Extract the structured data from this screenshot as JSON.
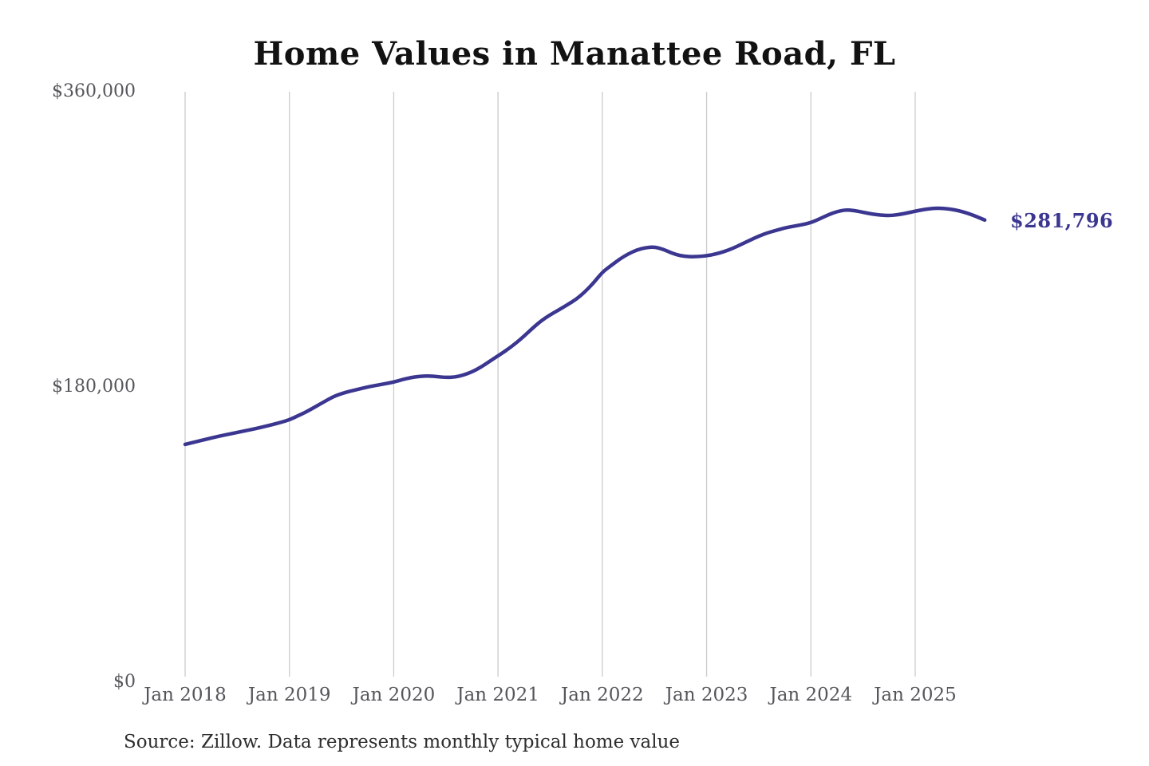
{
  "title": "Home Values in Manattee Road, FL",
  "annotation": {
    "label": "$281,796"
  },
  "source_note": "Source: Zillow. Data represents monthly typical home value",
  "colors": {
    "line": "#3b3690",
    "grid": "#cbcbcb",
    "axis_text": "#55565b",
    "title_text": "#121212",
    "source_text": "#2e2e2e",
    "background": "#ffffff"
  },
  "y_axis": {
    "ticks": [
      {
        "label": "$360,000",
        "value": 360000
      },
      {
        "label": "$180,000",
        "value": 180000
      },
      {
        "label": "$0",
        "value": 0
      }
    ]
  },
  "x_axis": {
    "ticks": [
      "Jan 2018",
      "Jan 2019",
      "Jan 2020",
      "Jan 2021",
      "Jan 2022",
      "Jan 2023",
      "Jan 2024",
      "Jan 2025"
    ]
  },
  "chart_data": {
    "type": "line",
    "title": "Home Values in Manattee Road, FL",
    "xlabel": "",
    "ylabel": "",
    "unit": "USD",
    "frequency": "monthly",
    "start_month": "Jan 2018",
    "end_month": "Sep 2025",
    "ylim": [
      0,
      360000
    ],
    "y_tick_values": [
      0,
      180000,
      360000
    ],
    "x_tick_labels": [
      "Jan 2018",
      "Jan 2019",
      "Jan 2020",
      "Jan 2021",
      "Jan 2022",
      "Jan 2023",
      "Jan 2024",
      "Jan 2025"
    ],
    "grid": "vertical-only",
    "legend": "none",
    "end_value": 281796,
    "end_label": "$281,796",
    "series": [
      {
        "name": "Typical home value",
        "values": [
          145000,
          146300,
          147600,
          148900,
          150100,
          151200,
          152300,
          153400,
          154500,
          155700,
          157000,
          158400,
          160000,
          162500,
          165000,
          168000,
          171000,
          174000,
          176000,
          177500,
          178700,
          180000,
          181000,
          182000,
          183000,
          184500,
          185800,
          186500,
          186800,
          186300,
          185800,
          186000,
          187200,
          189200,
          192000,
          195500,
          199000,
          202500,
          206500,
          211000,
          216000,
          220500,
          224000,
          227000,
          230200,
          233500,
          238000,
          243500,
          250000,
          254000,
          258000,
          261200,
          263600,
          265000,
          265400,
          264000,
          261600,
          260000,
          259400,
          259500,
          260000,
          261000,
          262500,
          264500,
          267000,
          269500,
          272000,
          274000,
          275500,
          277000,
          278000,
          279000,
          280200,
          282500,
          285000,
          287000,
          288000,
          287600,
          286500,
          285500,
          284800,
          284500,
          285000,
          286000,
          287200,
          288200,
          288900,
          289000,
          288500,
          287500,
          286000,
          284000,
          281796
        ]
      }
    ]
  }
}
